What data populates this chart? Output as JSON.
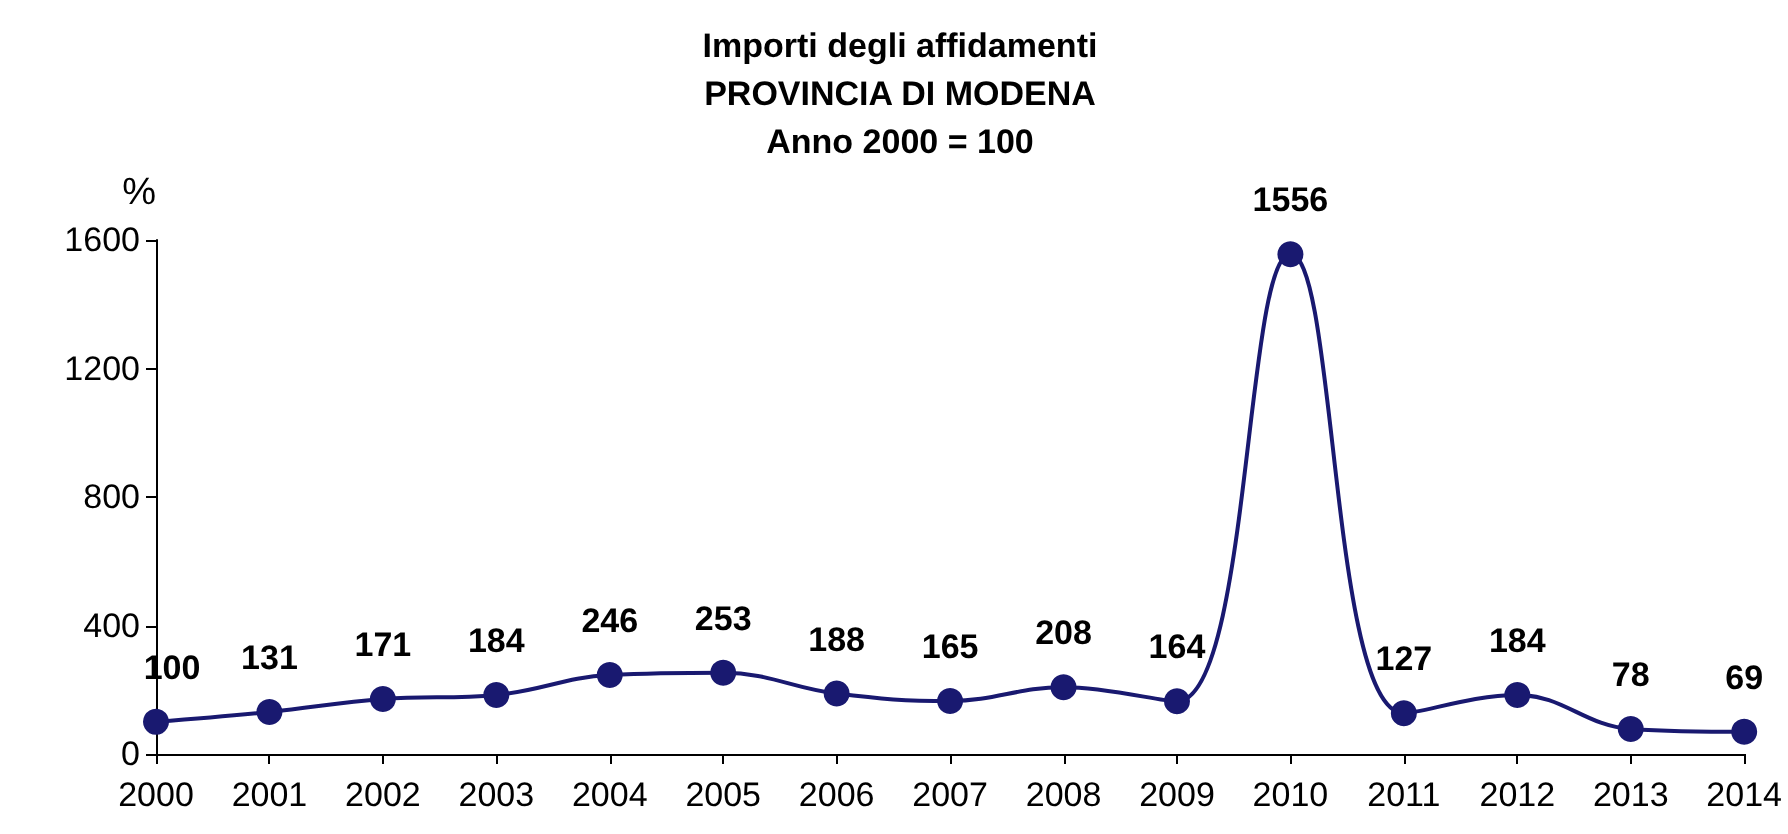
{
  "chart_data": {
    "type": "line",
    "title": "Importi degli affidamenti\nPROVINCIA DI MODENA\nAnno 2000 = 100",
    "ylabel": "%",
    "categories": [
      "2000",
      "2001",
      "2002",
      "2003",
      "2004",
      "2005",
      "2006",
      "2007",
      "2008",
      "2009",
      "2010",
      "2011",
      "2012",
      "2013",
      "2014"
    ],
    "series": [
      {
        "color": "#191970",
        "values": [
          100,
          131,
          171,
          184,
          246,
          253,
          188,
          165,
          208,
          164,
          1556,
          127,
          184,
          78,
          69
        ]
      }
    ],
    "ylim": [
      0,
      1600
    ],
    "yticks": [
      0,
      400,
      800,
      1200,
      1600
    ],
    "grid": false,
    "marker": "circle",
    "line_style": "solid",
    "data_labels": true
  }
}
